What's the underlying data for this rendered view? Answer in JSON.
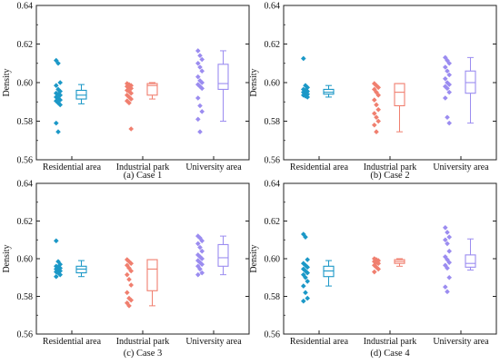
{
  "colors": {
    "Residential area": "#1b98c7",
    "Industrial park": "#f07f6f",
    "University area": "#9b8cf0",
    "frame": "#222222"
  },
  "chart_data": [
    {
      "type": "box",
      "caption": "(a) Case 1",
      "ylabel": "Density",
      "ylim": [
        0.56,
        0.64
      ],
      "yticks": [
        "0.56",
        "0.58",
        "0.60",
        "0.62",
        "0.64"
      ],
      "grid": false,
      "categories": [
        "Residential area",
        "Industrial park",
        "University area"
      ],
      "groups": [
        {
          "name": "Residential area",
          "points": [
            0.6115,
            0.61,
            0.6,
            0.5985,
            0.5965,
            0.5955,
            0.5945,
            0.594,
            0.5935,
            0.5925,
            0.592,
            0.591,
            0.5905,
            0.5895,
            0.5885,
            0.579,
            0.5745
          ],
          "box": {
            "whisker_low": 0.589,
            "q1": 0.5915,
            "median": 0.5935,
            "q3": 0.596,
            "whisker_high": 0.599
          }
        },
        {
          "name": "Industrial park",
          "points": [
            0.5995,
            0.599,
            0.5985,
            0.598,
            0.5975,
            0.597,
            0.596,
            0.5955,
            0.5945,
            0.5935,
            0.5925,
            0.5915,
            0.5905,
            0.5895,
            0.576
          ],
          "box": {
            "whisker_low": 0.5915,
            "q1": 0.5935,
            "median": 0.5985,
            "q3": 0.5995,
            "whisker_high": 0.6
          }
        },
        {
          "name": "University area",
          "points": [
            0.6165,
            0.614,
            0.612,
            0.61,
            0.608,
            0.606,
            0.603,
            0.601,
            0.6,
            0.599,
            0.598,
            0.597,
            0.592,
            0.588,
            0.585,
            0.581,
            0.5745
          ],
          "box": {
            "whisker_low": 0.58,
            "q1": 0.5965,
            "median": 0.5995,
            "q3": 0.6095,
            "whisker_high": 0.6165
          }
        }
      ]
    },
    {
      "type": "box",
      "caption": "(b) Case 2",
      "ylabel": "Density",
      "ylim": [
        0.56,
        0.64
      ],
      "yticks": [
        "0.56",
        "0.58",
        "0.60",
        "0.62",
        "0.64"
      ],
      "grid": false,
      "categories": [
        "Residential area",
        "Industrial park",
        "University area"
      ],
      "groups": [
        {
          "name": "Residential area",
          "points": [
            0.6125,
            0.5985,
            0.5975,
            0.5965,
            0.596,
            0.5955,
            0.595,
            0.5945,
            0.594,
            0.5935,
            0.593,
            0.5925
          ],
          "box": {
            "whisker_low": 0.5925,
            "q1": 0.594,
            "median": 0.595,
            "q3": 0.5965,
            "whisker_high": 0.5985
          }
        },
        {
          "name": "Industrial park",
          "points": [
            0.5995,
            0.5985,
            0.5975,
            0.5965,
            0.595,
            0.5935,
            0.591,
            0.5885,
            0.586,
            0.584,
            0.582,
            0.58,
            0.578,
            0.5745
          ],
          "box": {
            "whisker_low": 0.5745,
            "q1": 0.588,
            "median": 0.595,
            "q3": 0.5995,
            "whisker_high": 0.5995
          }
        },
        {
          "name": "University area",
          "points": [
            0.613,
            0.6115,
            0.61,
            0.608,
            0.606,
            0.604,
            0.602,
            0.6,
            0.599,
            0.598,
            0.597,
            0.595,
            0.592,
            0.582,
            0.579
          ],
          "box": {
            "whisker_low": 0.579,
            "q1": 0.5945,
            "median": 0.6,
            "q3": 0.606,
            "whisker_high": 0.613
          }
        }
      ]
    },
    {
      "type": "box",
      "caption": "(c) Case 3",
      "ylabel": "Density",
      "ylim": [
        0.56,
        0.64
      ],
      "yticks": [
        "0.56",
        "0.58",
        "0.60",
        "0.62",
        "0.64"
      ],
      "grid": false,
      "categories": [
        "Residential area",
        "Industrial park",
        "University area"
      ],
      "groups": [
        {
          "name": "Residential area",
          "points": [
            0.6095,
            0.5985,
            0.597,
            0.596,
            0.5955,
            0.595,
            0.5945,
            0.594,
            0.5935,
            0.593,
            0.5925,
            0.5915,
            0.5905
          ],
          "box": {
            "whisker_low": 0.5905,
            "q1": 0.5925,
            "median": 0.5945,
            "q3": 0.596,
            "whisker_high": 0.599
          }
        },
        {
          "name": "Industrial park",
          "points": [
            0.5995,
            0.5985,
            0.5975,
            0.5965,
            0.595,
            0.5935,
            0.5915,
            0.589,
            0.586,
            0.582,
            0.579,
            0.578,
            0.5765,
            0.575
          ],
          "box": {
            "whisker_low": 0.575,
            "q1": 0.583,
            "median": 0.5945,
            "q3": 0.5995,
            "whisker_high": 0.5995
          }
        },
        {
          "name": "University area",
          "points": [
            0.612,
            0.611,
            0.6095,
            0.608,
            0.606,
            0.604,
            0.602,
            0.601,
            0.6,
            0.599,
            0.598,
            0.597,
            0.596,
            0.5945,
            0.5925,
            0.5915
          ],
          "box": {
            "whisker_low": 0.5915,
            "q1": 0.596,
            "median": 0.6005,
            "q3": 0.6075,
            "whisker_high": 0.612
          }
        }
      ]
    },
    {
      "type": "box",
      "caption": "(d) Case 4",
      "ylabel": "Density",
      "ylim": [
        0.56,
        0.64
      ],
      "yticks": [
        "0.56",
        "0.58",
        "0.60",
        "0.62",
        "0.64"
      ],
      "grid": false,
      "categories": [
        "Residential area",
        "Industrial park",
        "University area"
      ],
      "groups": [
        {
          "name": "Residential area",
          "points": [
            0.613,
            0.6115,
            0.5995,
            0.5975,
            0.5965,
            0.5955,
            0.5945,
            0.5935,
            0.5925,
            0.5915,
            0.59,
            0.588,
            0.5855,
            0.582,
            0.579,
            0.5775
          ],
          "box": {
            "whisker_low": 0.5855,
            "q1": 0.5905,
            "median": 0.5935,
            "q3": 0.596,
            "whisker_high": 0.599
          }
        },
        {
          "name": "Industrial park",
          "points": [
            0.6,
            0.5995,
            0.599,
            0.5985,
            0.598,
            0.5975,
            0.5965,
            0.5955,
            0.5945,
            0.593
          ],
          "box": {
            "whisker_low": 0.596,
            "q1": 0.5975,
            "median": 0.5985,
            "q3": 0.5995,
            "whisker_high": 0.6
          }
        },
        {
          "name": "University area",
          "points": [
            0.6165,
            0.614,
            0.6115,
            0.61,
            0.608,
            0.604,
            0.601,
            0.5995,
            0.598,
            0.5965,
            0.595,
            0.59,
            0.585,
            0.5825
          ],
          "box": {
            "whisker_low": 0.594,
            "q1": 0.5955,
            "median": 0.5975,
            "q3": 0.602,
            "whisker_high": 0.6105
          }
        }
      ]
    }
  ]
}
